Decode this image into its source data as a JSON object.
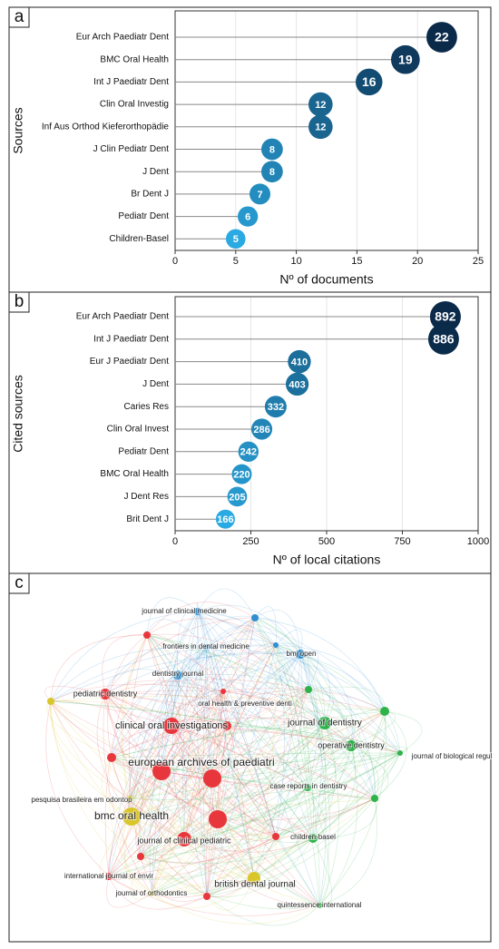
{
  "chart_data": [
    {
      "type": "lollipop",
      "panel_label": "a",
      "ylabel": "Sources",
      "xlabel": "Nº of documents",
      "categories": [
        "Eur Arch Paediatr Dent",
        "BMC Oral Health",
        "Int J Paediatr Dent",
        "Clin Oral Investig",
        "Inf Aus Orthod Kieferorthopädie",
        "J Clin Pediatr Dent",
        "J Dent",
        "Br Dent J",
        "Pediatr Dent",
        "Children-Basel"
      ],
      "values": [
        22,
        19,
        16,
        12,
        12,
        8,
        8,
        7,
        6,
        5
      ],
      "xlim": [
        0,
        25
      ],
      "xticks": [
        0,
        5,
        10,
        15,
        20,
        25
      ],
      "grid": true,
      "color_range": [
        "#2aaae2",
        "#0b2a4a"
      ]
    },
    {
      "type": "lollipop",
      "panel_label": "b",
      "ylabel": "Cited sources",
      "xlabel": "Nº of local citations",
      "categories": [
        "Eur Arch Paediatr Dent",
        "Int J Paediatr Dent",
        "Eur J Paediatr Dent",
        "J Dent",
        "Caries Res",
        "Clin Oral Invest",
        "Pediatr Dent",
        "BMC Oral Health",
        "J Dent Res",
        "Brit Dent J"
      ],
      "values": [
        892,
        886,
        410,
        403,
        332,
        286,
        242,
        220,
        205,
        166
      ],
      "xlim": [
        0,
        1000
      ],
      "xticks": [
        0,
        250,
        500,
        750,
        1000
      ],
      "grid": true,
      "color_range": [
        "#2aaae2",
        "#0b2a4a"
      ]
    }
  ],
  "network": {
    "panel_label": "c",
    "nodes": [
      {
        "label": "journal of clinical medicine",
        "color": "#2f8fd0"
      },
      {
        "label": "frontiers in dental medicine",
        "color": "#2f8fd0"
      },
      {
        "label": "bmj open",
        "color": "#2f8fd0"
      },
      {
        "label": "dentistry journal",
        "color": "#2f8fd0"
      },
      {
        "label": "pediatric dentistry",
        "color": "#e8373c"
      },
      {
        "label": "oral health & preventive denti",
        "color": "#e8373c"
      },
      {
        "label": "clinical oral investigations",
        "color": "#e8373c"
      },
      {
        "label": "journal of dentistry",
        "color": "#2db34a"
      },
      {
        "label": "operative dentistry",
        "color": "#2db34a"
      },
      {
        "label": "journal of biological regul",
        "color": "#2db34a"
      },
      {
        "label": "european archives of paediatri",
        "color": "#e8373c"
      },
      {
        "label": "case reports in dentistry",
        "color": "#2db34a"
      },
      {
        "label": "pesquisa brasileira em odontop",
        "color": "#d9c62a"
      },
      {
        "label": "bmc oral health",
        "color": "#d9c62a"
      },
      {
        "label": "journal of clinical pediatric",
        "color": "#e8373c"
      },
      {
        "label": "children-basel",
        "color": "#2db34a"
      },
      {
        "label": "international journal of envir",
        "color": "#e8373c"
      },
      {
        "label": "british dental journal",
        "color": "#d9c62a"
      },
      {
        "label": "journal of orthodontics",
        "color": "#d9c62a"
      },
      {
        "label": "quintessence international",
        "color": "#2db34a"
      }
    ]
  }
}
